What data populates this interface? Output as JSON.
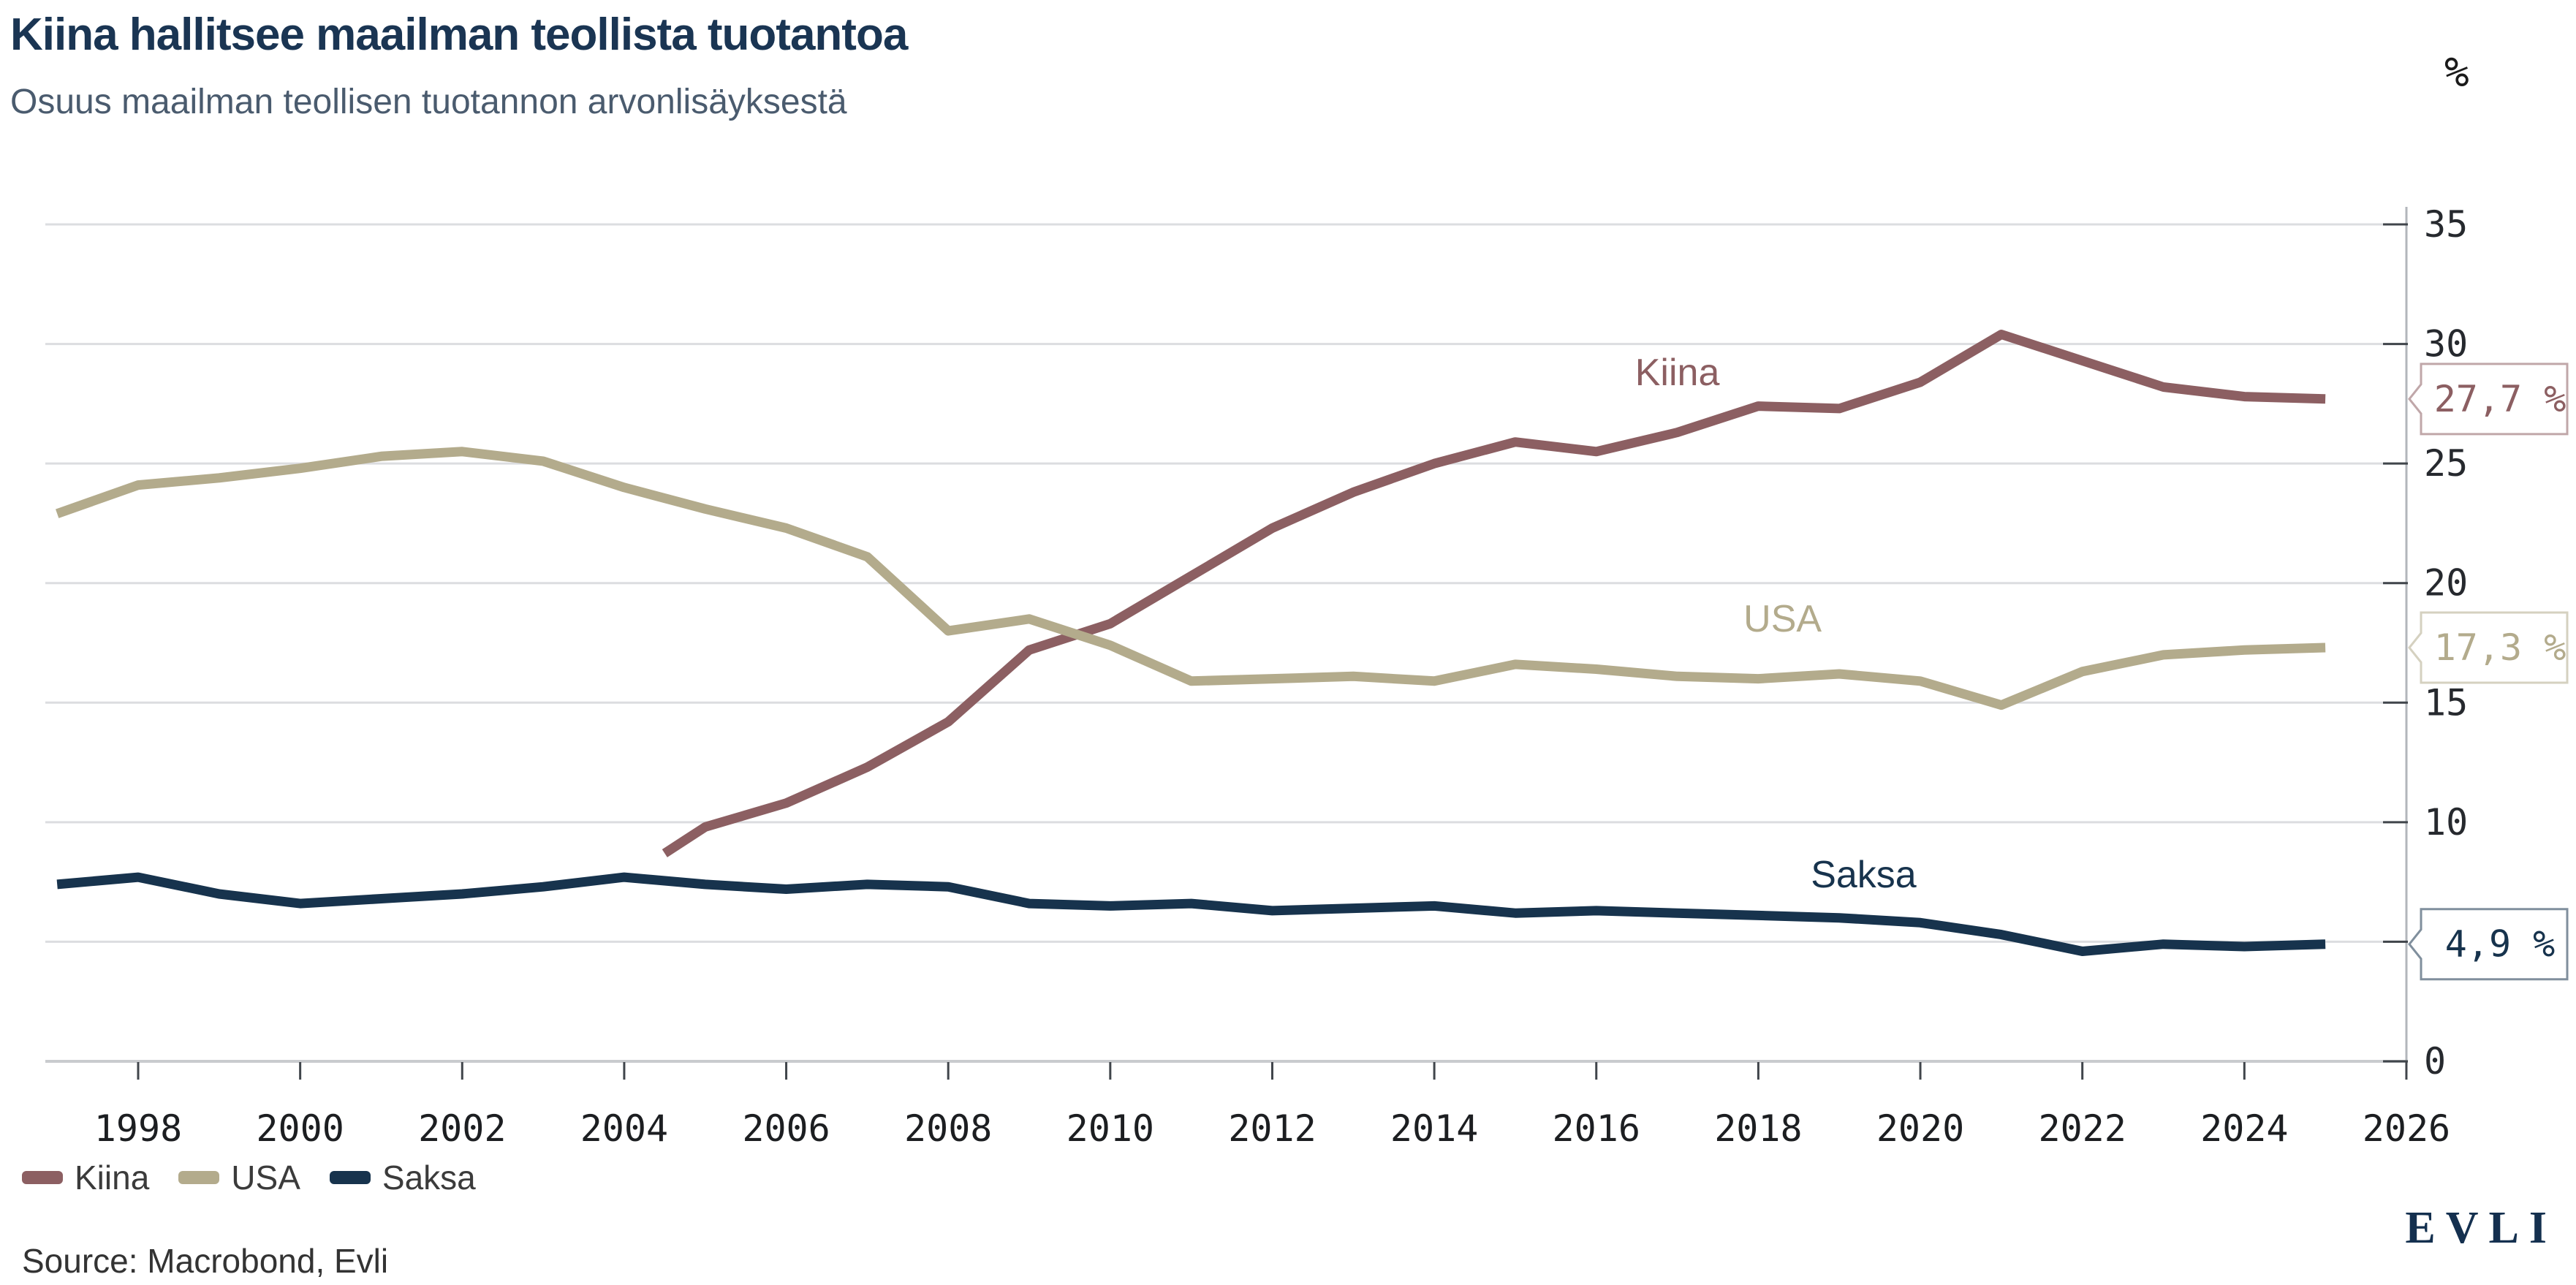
{
  "header": {
    "title": "Kiina hallitsee maailman teollista tuotantoa",
    "subtitle": "Osuus maailman teollisen tuotannon arvonlisäyksestä"
  },
  "footer": {
    "source": "Source: Macrobond, Evli",
    "brand": "EVLI"
  },
  "legend": [
    {
      "label": "Kiina",
      "color": "#8C5F62"
    },
    {
      "label": "USA",
      "color": "#B3AB8C"
    },
    {
      "label": "Saksa",
      "color": "#17334D"
    }
  ],
  "chart_data": {
    "type": "line",
    "title": "Kiina hallitsee maailman teollista tuotantoa",
    "subtitle": "Osuus maailman teollisen tuotannon arvonlisäyksestä",
    "unit_label": "%",
    "xlabel": "",
    "ylabel": "%",
    "ylim": [
      0,
      35
    ],
    "yticks": [
      35,
      30,
      25,
      20,
      15,
      10,
      5,
      0
    ],
    "xticks": [
      1998,
      2000,
      2002,
      2004,
      2006,
      2008,
      2010,
      2012,
      2014,
      2016,
      2018,
      2020,
      2022,
      2024,
      2026
    ],
    "x_range": [
      1996.9,
      2026
    ],
    "grid": "horizontal",
    "legend_position": "bottom-left",
    "colors": {
      "gridline": "#DCDDE0",
      "axis_line": "#B2B6BB",
      "baseline": "#C9CBCE",
      "tick_mark": "#40454B",
      "tick_text": "#26292E",
      "badge_fill": "#FFFFFF"
    },
    "series": [
      {
        "name": "Kiina",
        "color": "#8C5F62",
        "end_label": "27,7 %",
        "x": [
          2004.5,
          2005,
          2006,
          2007,
          2008,
          2009,
          2010,
          2011,
          2012,
          2013,
          2014,
          2015,
          2016,
          2017,
          2018,
          2019,
          2020,
          2021,
          2022,
          2023,
          2024,
          2025
        ],
        "values": [
          8.7,
          9.8,
          10.8,
          12.3,
          14.2,
          17.2,
          18.3,
          20.3,
          22.3,
          23.8,
          25.0,
          25.9,
          25.5,
          26.3,
          27.4,
          27.3,
          28.4,
          30.4,
          29.3,
          28.2,
          27.8,
          27.7
        ]
      },
      {
        "name": "USA",
        "color": "#B3AB8C",
        "end_label": "17,3 %",
        "x": [
          1997,
          1998,
          1999,
          2000,
          2001,
          2002,
          2003,
          2004,
          2005,
          2006,
          2007,
          2008,
          2009,
          2010,
          2011,
          2012,
          2013,
          2014,
          2015,
          2016,
          2017,
          2018,
          2019,
          2020,
          2021,
          2022,
          2023,
          2024,
          2025
        ],
        "values": [
          22.9,
          24.1,
          24.4,
          24.8,
          25.3,
          25.5,
          25.1,
          24.0,
          23.1,
          22.3,
          21.1,
          18.0,
          18.5,
          17.4,
          15.9,
          16.0,
          16.1,
          15.9,
          16.6,
          16.4,
          16.1,
          16.0,
          16.2,
          15.9,
          14.9,
          16.3,
          17.0,
          17.2,
          17.3
        ]
      },
      {
        "name": "Saksa",
        "color": "#17334D",
        "end_label": "4,9 %",
        "x": [
          1997,
          1998,
          1999,
          2000,
          2001,
          2002,
          2003,
          2004,
          2005,
          2006,
          2007,
          2008,
          2009,
          2010,
          2011,
          2012,
          2013,
          2014,
          2015,
          2016,
          2017,
          2018,
          2019,
          2020,
          2021,
          2022,
          2023,
          2024,
          2025
        ],
        "values": [
          7.4,
          7.7,
          7.0,
          6.6,
          6.8,
          7.0,
          7.3,
          7.7,
          7.4,
          7.2,
          7.4,
          7.3,
          6.6,
          6.5,
          6.6,
          6.3,
          6.4,
          6.5,
          6.2,
          6.3,
          6.2,
          6.1,
          6.0,
          5.8,
          5.3,
          4.6,
          4.9,
          4.8,
          4.9
        ]
      }
    ],
    "annotations": [
      {
        "text": "Kiina",
        "x": 2017.0,
        "y": 28.8,
        "color": "#8C5F62"
      },
      {
        "text": "USA",
        "x": 2018.3,
        "y": 18.5,
        "color": "#B3AB8C"
      },
      {
        "text": "Saksa",
        "x": 2019.3,
        "y": 7.8,
        "color": "#17334D"
      }
    ]
  }
}
